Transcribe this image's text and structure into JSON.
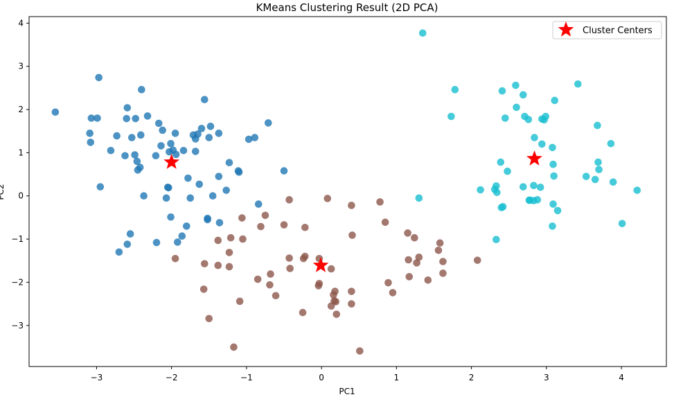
{
  "chart_data": {
    "type": "scatter",
    "title": "KMeans Clustering Result (2D PCA)",
    "xlabel": "PC1",
    "ylabel": "PC2",
    "xlim": [
      -3.9,
      4.6
    ],
    "ylim": [
      -3.95,
      4.15
    ],
    "xticks": [
      -3,
      -2,
      -1,
      0,
      1,
      2,
      3,
      4
    ],
    "yticks": [
      -3,
      -2,
      -1,
      0,
      1,
      2,
      3,
      4
    ],
    "grid": false,
    "legend": {
      "placement": "top-right",
      "entries": [
        "Cluster Centers"
      ]
    },
    "series": [
      {
        "color": "#1f77b4",
        "points": [
          [
            -3.55,
            1.94
          ],
          [
            -3.07,
            1.8
          ],
          [
            -2.99,
            1.8
          ],
          [
            -2.97,
            2.74
          ],
          [
            -3.09,
            1.45
          ],
          [
            -3.08,
            1.24
          ],
          [
            -2.95,
            0.21
          ],
          [
            -2.81,
            1.05
          ],
          [
            -2.73,
            1.39
          ],
          [
            -2.62,
            0.93
          ],
          [
            -2.6,
            1.79
          ],
          [
            -2.59,
            2.04
          ],
          [
            -2.53,
            1.35
          ],
          [
            -2.48,
            1.79
          ],
          [
            -2.49,
            0.95
          ],
          [
            -2.46,
            0.8
          ],
          [
            -2.45,
            0.6
          ],
          [
            -2.42,
            0.66
          ],
          [
            -2.4,
            2.46
          ],
          [
            -2.41,
            1.41
          ],
          [
            -2.37,
            0.0
          ],
          [
            -2.32,
            1.85
          ],
          [
            -2.7,
            -1.3
          ],
          [
            -2.59,
            -1.12
          ],
          [
            -2.55,
            -0.88
          ],
          [
            -2.21,
            0.93
          ],
          [
            -2.17,
            1.68
          ],
          [
            -2.14,
            1.16
          ],
          [
            -2.12,
            1.52
          ],
          [
            -2.2,
            -1.08
          ],
          [
            -2.07,
            -0.05
          ],
          [
            -2.04,
            0.19
          ],
          [
            -2.05,
            0.2
          ],
          [
            -2.03,
            1.02
          ],
          [
            -2.01,
            1.21
          ],
          [
            -1.98,
            1.06
          ],
          [
            -1.95,
            1.45
          ],
          [
            -1.94,
            0.96
          ],
          [
            -2.01,
            -0.49
          ],
          [
            -1.92,
            -1.07
          ],
          [
            -1.86,
            -0.93
          ],
          [
            -1.8,
            -0.7
          ],
          [
            -1.78,
            0.41
          ],
          [
            -1.75,
            -0.05
          ],
          [
            -1.84,
            1.05
          ],
          [
            -1.71,
            1.41
          ],
          [
            -1.68,
            1.32
          ],
          [
            -1.65,
            1.43
          ],
          [
            -1.68,
            1.03
          ],
          [
            -1.6,
            1.56
          ],
          [
            -1.63,
            0.27
          ],
          [
            -1.56,
            2.23
          ],
          [
            -1.52,
            -0.55
          ],
          [
            -1.5,
            1.35
          ],
          [
            -1.48,
            1.61
          ],
          [
            -1.45,
            0.0
          ],
          [
            -1.52,
            -0.52
          ],
          [
            -1.37,
            1.45
          ],
          [
            -1.37,
            0.45
          ],
          [
            -1.36,
            -0.62
          ],
          [
            -1.27,
            0.13
          ],
          [
            -1.23,
            0.77
          ],
          [
            -1.11,
            0.58
          ],
          [
            -1.1,
            0.55
          ],
          [
            -0.97,
            1.31
          ],
          [
            -0.89,
            1.35
          ],
          [
            -0.84,
            -0.19
          ],
          [
            -0.71,
            1.69
          ],
          [
            -0.5,
            0.58
          ]
        ]
      },
      {
        "color": "#8c564b",
        "points": [
          [
            -1.95,
            -1.45
          ],
          [
            -1.56,
            -1.57
          ],
          [
            -1.57,
            -2.16
          ],
          [
            -1.5,
            -2.84
          ],
          [
            -1.38,
            -1.03
          ],
          [
            -1.38,
            -1.61
          ],
          [
            -1.23,
            -1.31
          ],
          [
            -1.23,
            -1.64
          ],
          [
            -1.21,
            -0.97
          ],
          [
            -1.17,
            -3.5
          ],
          [
            -1.09,
            -2.44
          ],
          [
            -1.05,
            -1.0
          ],
          [
            -1.06,
            -0.51
          ],
          [
            -0.85,
            -1.93
          ],
          [
            -0.81,
            -0.71
          ],
          [
            -0.75,
            -0.45
          ],
          [
            -0.68,
            -1.81
          ],
          [
            -0.69,
            -2.06
          ],
          [
            -0.61,
            -2.31
          ],
          [
            -0.5,
            -0.67
          ],
          [
            -0.43,
            -0.09
          ],
          [
            -0.43,
            -1.44
          ],
          [
            -0.42,
            -1.68
          ],
          [
            -0.24,
            -1.45
          ],
          [
            -0.22,
            -1.4
          ],
          [
            -0.25,
            -2.7
          ],
          [
            -0.22,
            -0.73
          ],
          [
            -0.03,
            -1.45
          ],
          [
            -0.04,
            -2.08
          ],
          [
            -0.03,
            -2.03
          ],
          [
            0.08,
            -0.06
          ],
          [
            0.13,
            -1.69
          ],
          [
            0.13,
            -2.55
          ],
          [
            0.16,
            -2.29
          ],
          [
            0.18,
            -2.21
          ],
          [
            0.19,
            -2.45
          ],
          [
            0.17,
            -2.43
          ],
          [
            0.2,
            -2.74
          ],
          [
            0.4,
            -0.22
          ],
          [
            0.4,
            -2.21
          ],
          [
            0.4,
            -2.5
          ],
          [
            0.41,
            -0.91
          ],
          [
            0.51,
            -3.59
          ],
          [
            0.78,
            -0.14
          ],
          [
            0.85,
            -0.61
          ],
          [
            0.89,
            -2.01
          ],
          [
            0.95,
            -2.24
          ],
          [
            1.15,
            -0.86
          ],
          [
            1.16,
            -1.48
          ],
          [
            1.17,
            -1.87
          ],
          [
            1.24,
            -0.97
          ],
          [
            1.27,
            -1.55
          ],
          [
            1.3,
            -1.42
          ],
          [
            1.42,
            -1.95
          ],
          [
            1.56,
            -1.26
          ],
          [
            1.58,
            -1.09
          ],
          [
            1.62,
            -1.52
          ],
          [
            1.62,
            -1.79
          ],
          [
            2.08,
            -1.49
          ]
        ]
      },
      {
        "color": "#17becf",
        "points": [
          [
            1.35,
            3.77
          ],
          [
            1.3,
            -0.05
          ],
          [
            1.73,
            1.84
          ],
          [
            1.78,
            2.46
          ],
          [
            2.12,
            0.14
          ],
          [
            2.31,
            0.15
          ],
          [
            2.33,
            0.23
          ],
          [
            2.34,
            0.08
          ],
          [
            2.33,
            -1.01
          ],
          [
            2.39,
            0.78
          ],
          [
            2.4,
            -0.27
          ],
          [
            2.42,
            -0.25
          ],
          [
            2.41,
            2.43
          ],
          [
            2.45,
            1.8
          ],
          [
            2.48,
            0.57
          ],
          [
            2.59,
            2.56
          ],
          [
            2.6,
            2.05
          ],
          [
            2.69,
            2.34
          ],
          [
            2.69,
            0.21
          ],
          [
            2.71,
            1.84
          ],
          [
            2.76,
            1.77
          ],
          [
            2.77,
            -0.1
          ],
          [
            2.78,
            -0.1
          ],
          [
            2.83,
            -0.11
          ],
          [
            2.83,
            0.24
          ],
          [
            2.84,
            1.35
          ],
          [
            2.88,
            -0.09
          ],
          [
            2.92,
            0.2
          ],
          [
            2.94,
            1.78
          ],
          [
            2.94,
            1.2
          ],
          [
            2.97,
            1.76
          ],
          [
            2.99,
            1.84
          ],
          [
            3.08,
            1.12
          ],
          [
            3.09,
            0.73
          ],
          [
            3.09,
            -0.19
          ],
          [
            3.08,
            -0.7
          ],
          [
            3.1,
            0.46
          ],
          [
            3.11,
            2.21
          ],
          [
            3.15,
            -0.34
          ],
          [
            3.42,
            2.59
          ],
          [
            3.53,
            0.45
          ],
          [
            3.65,
            0.38
          ],
          [
            3.68,
            1.63
          ],
          [
            3.69,
            0.78
          ],
          [
            3.7,
            0.61
          ],
          [
            3.86,
            1.21
          ],
          [
            3.89,
            0.32
          ],
          [
            4.01,
            -0.64
          ],
          [
            4.21,
            0.13
          ]
        ]
      }
    ],
    "centers": {
      "name": "Cluster Centers",
      "color": "#ff0000",
      "points": [
        [
          -2.0,
          0.78
        ],
        [
          -0.01,
          -1.61
        ],
        [
          2.84,
          0.86
        ]
      ]
    }
  }
}
